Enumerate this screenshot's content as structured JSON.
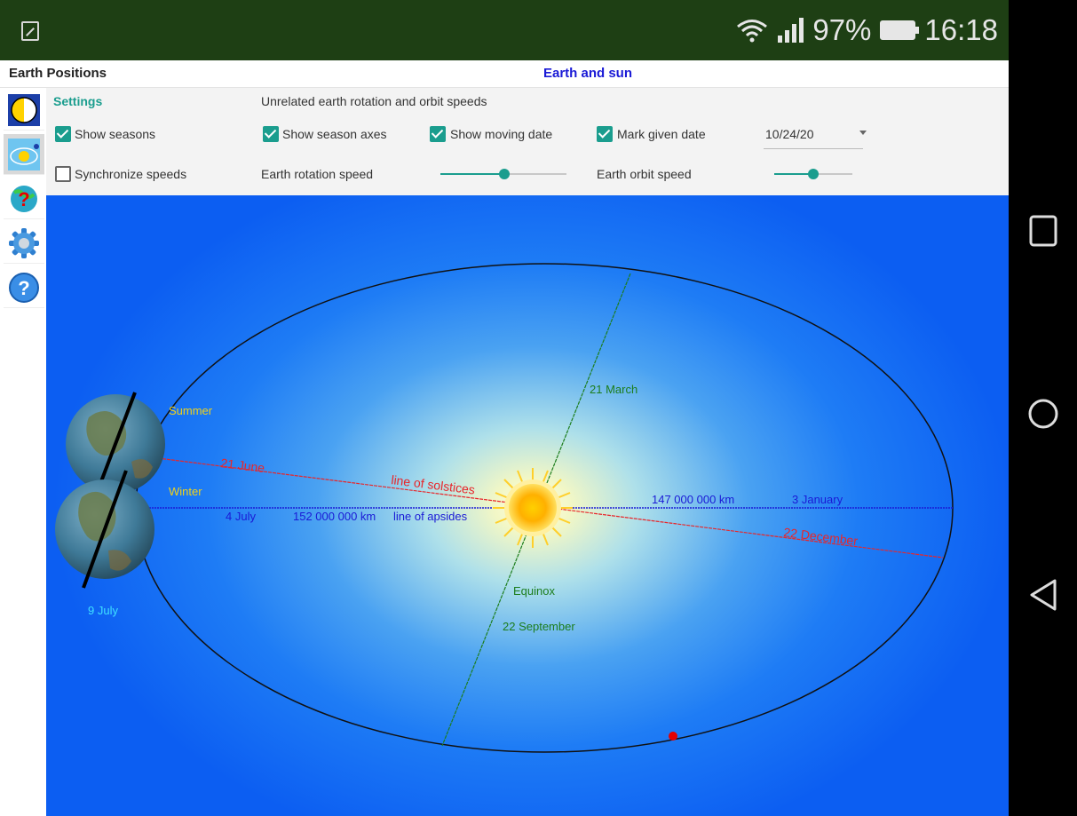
{
  "status_bar": {
    "battery": "97%",
    "time": "16:18",
    "icons": [
      "image-icon",
      "wifi-icon",
      "signal-icon",
      "battery-icon"
    ]
  },
  "header": {
    "app_title": "Earth Positions",
    "center_title": "Earth and sun"
  },
  "sidebar": {
    "items": [
      {
        "name": "day-night-icon"
      },
      {
        "name": "orbit-icon"
      },
      {
        "name": "quiz-icon"
      },
      {
        "name": "gear-icon"
      },
      {
        "name": "help-icon"
      }
    ],
    "active_index": 1
  },
  "settings": {
    "title": "Settings",
    "subtitle": "Unrelated earth rotation and orbit speeds",
    "show_seasons": {
      "label": "Show seasons",
      "checked": true
    },
    "show_season_axes": {
      "label": "Show season axes",
      "checked": true
    },
    "show_moving_date": {
      "label": "Show moving date",
      "checked": true
    },
    "mark_given_date": {
      "label": "Mark given date",
      "checked": true
    },
    "given_date": "10/24/20",
    "synchronize_speeds": {
      "label": "Synchronize speeds",
      "checked": false
    },
    "earth_rotation_speed": {
      "label": "Earth rotation speed",
      "value": 0.5
    },
    "earth_orbit_speed": {
      "label": "Earth orbit speed",
      "value": 0.5
    }
  },
  "diagram": {
    "summer": "Summer",
    "winter": "Winter",
    "june_21": "21 June",
    "july_4": "4 July",
    "july_9": "9 July",
    "aphelion_distance": "152 000 000 km",
    "line_of_apsides": "line of apsides",
    "line_of_solstices": "line of solstices",
    "march_21": "21 March",
    "equinox": "Equinox",
    "september_22": "22 September",
    "perihelion_distance": "147 000 000 km",
    "january_3": "3 January",
    "december_22": "22 December",
    "colors": {
      "solstice_line": "#e8262a",
      "apsides_line": "#1a1ad6",
      "equinox_line": "#1c7d1c",
      "summer_label": "#f0d21a",
      "date_marker": "#e60000"
    }
  },
  "nav": {
    "buttons": [
      "recent-apps-icon",
      "home-icon",
      "back-icon"
    ]
  }
}
